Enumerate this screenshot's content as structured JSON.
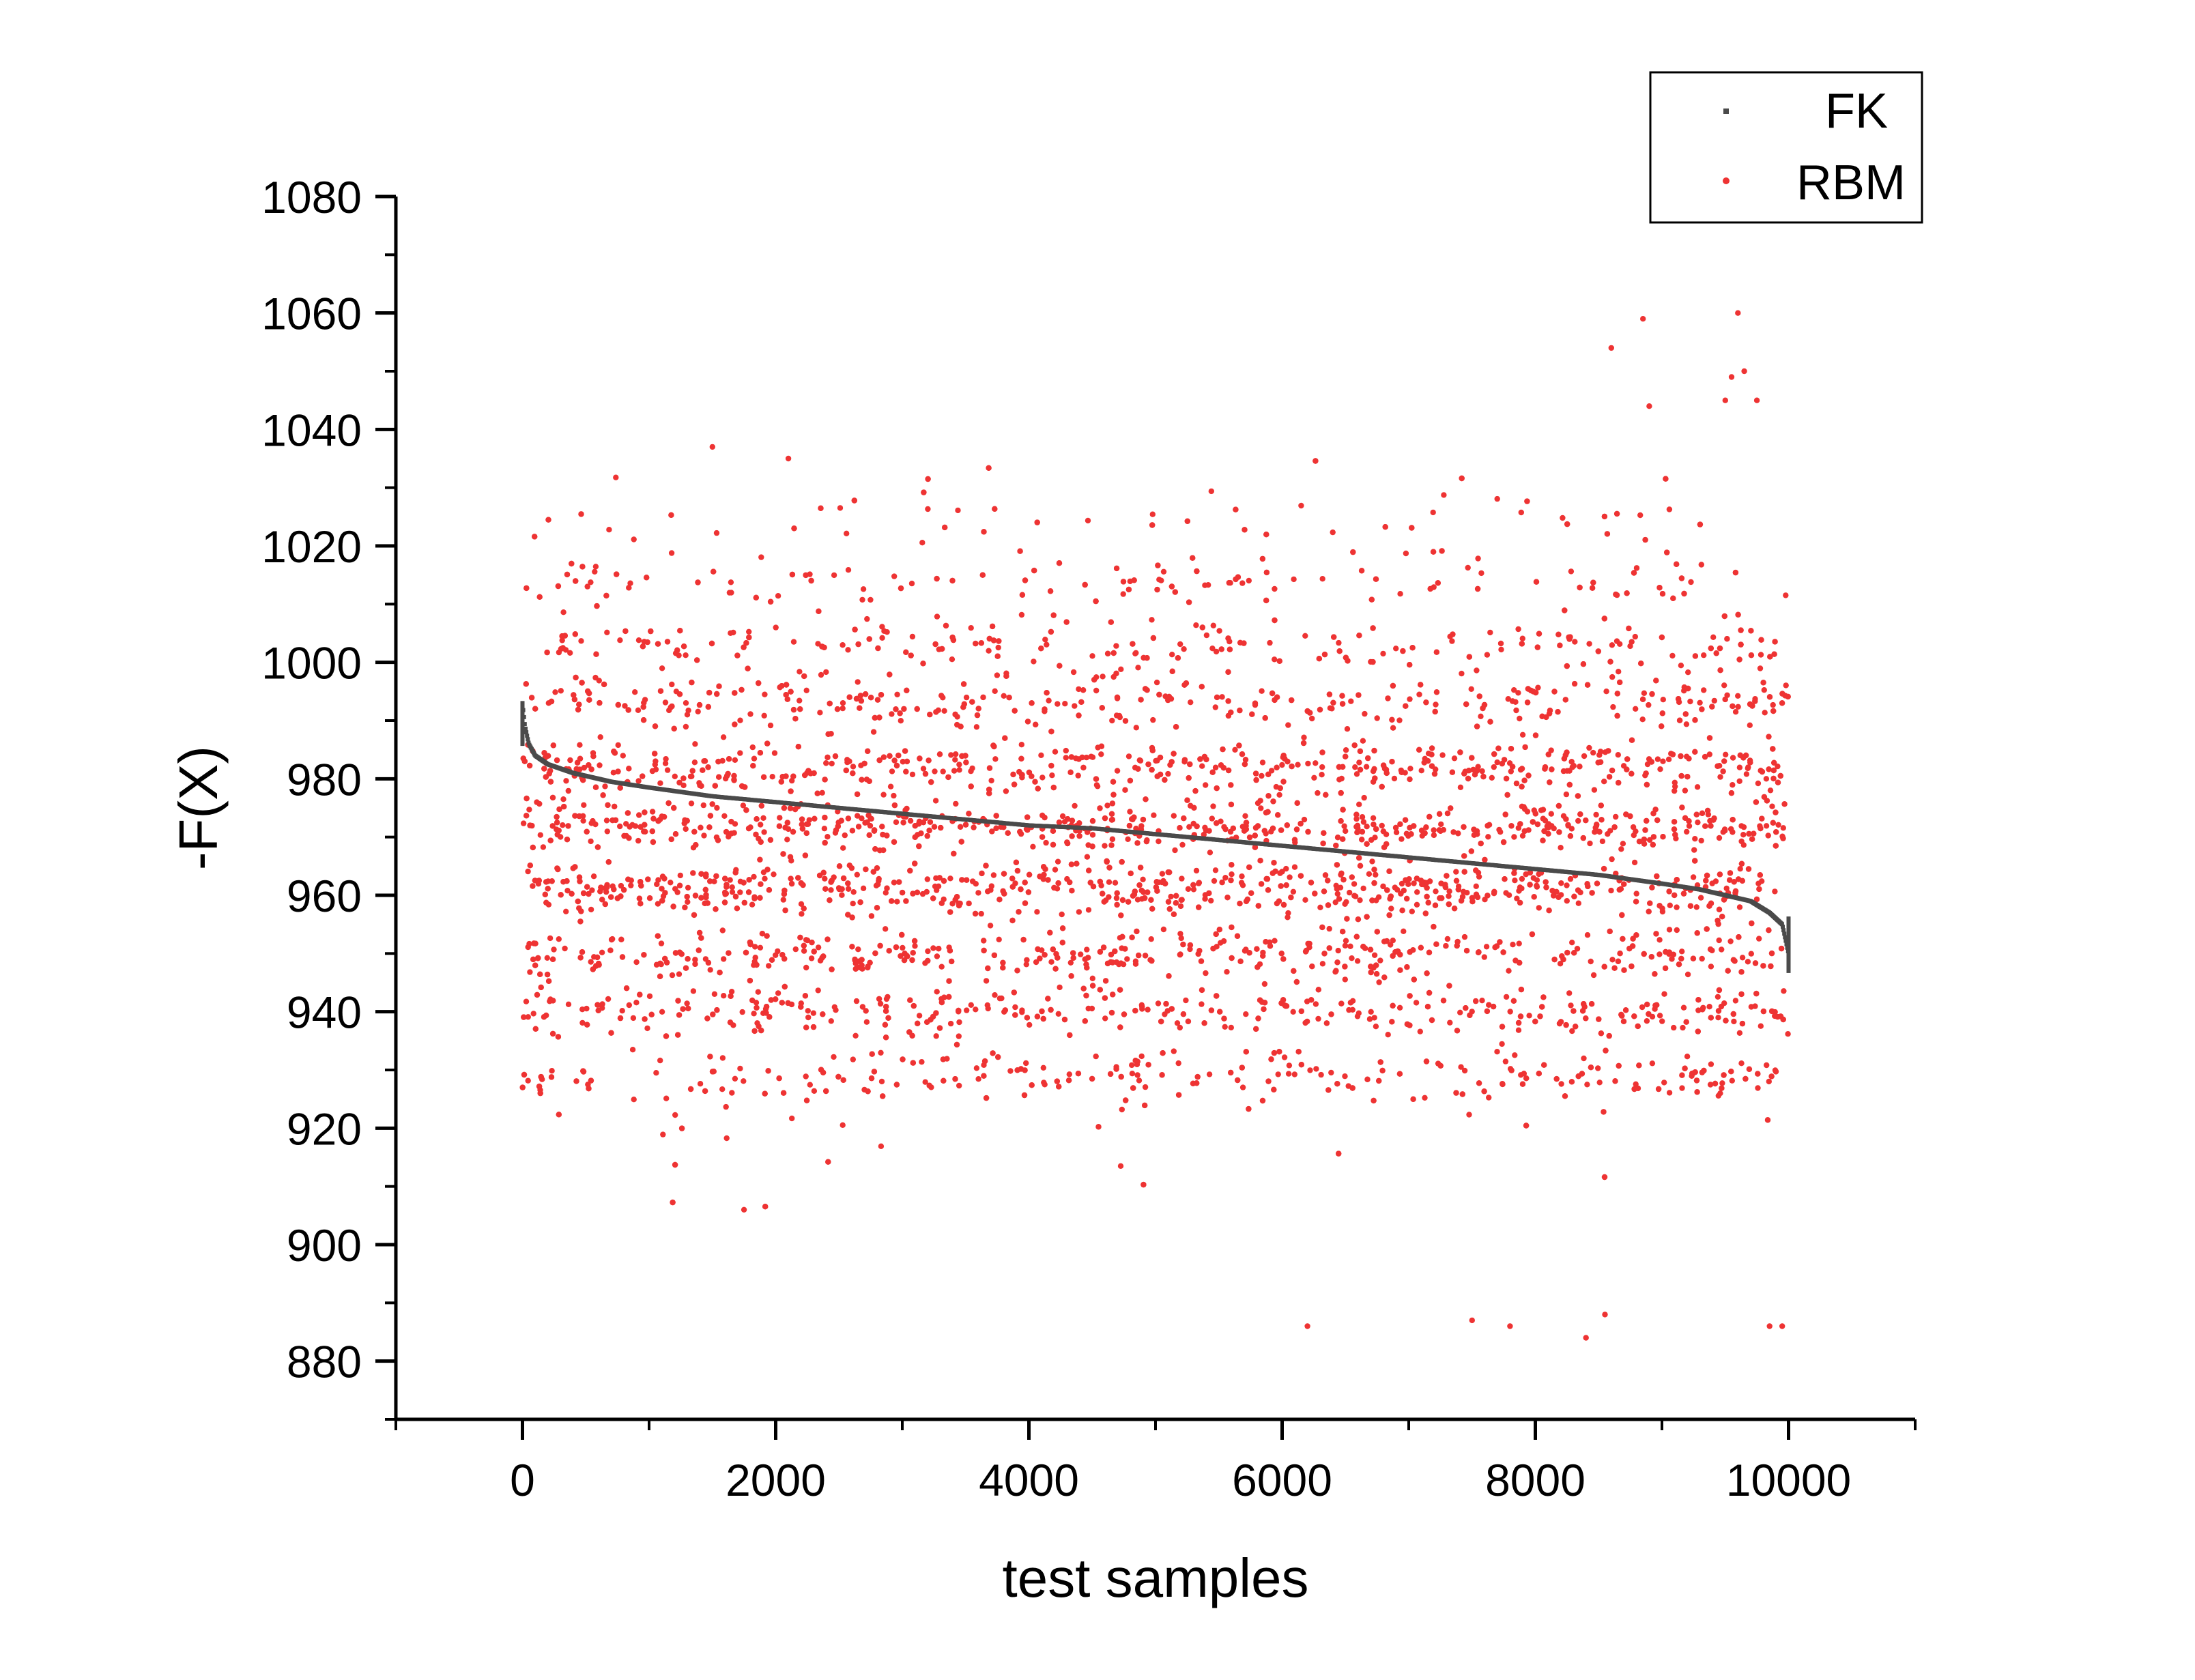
{
  "chart_data": {
    "type": "scatter",
    "xlabel": "test samples",
    "ylabel": "-F(X)",
    "xlim": [
      -1000,
      11000
    ],
    "ylim": [
      870,
      1080
    ],
    "xticks": [
      0,
      2000,
      4000,
      6000,
      8000,
      10000
    ],
    "yticks": [
      880,
      900,
      920,
      940,
      960,
      980,
      1000,
      1020,
      1040,
      1060,
      1080
    ],
    "grid": false,
    "legend_position": "top-right",
    "series": [
      {
        "name": "FK",
        "color": "#4a4a4a",
        "marker": "square",
        "description_points": "sorted monotonically decreasing curve",
        "x": [
          0,
          20,
          50,
          100,
          200,
          400,
          700,
          1000,
          1500,
          2000,
          2500,
          3000,
          3500,
          4000,
          4500,
          5000,
          5500,
          6000,
          6500,
          7000,
          7500,
          8000,
          8500,
          9000,
          9300,
          9500,
          9700,
          9850,
          9950,
          10000
        ],
        "y": [
          993,
          989,
          986,
          984,
          982.5,
          981,
          979.5,
          978.5,
          977,
          976,
          975,
          974,
          973,
          972,
          971.5,
          970.5,
          969.5,
          968.5,
          967.5,
          966.5,
          965.5,
          964.5,
          963.5,
          962,
          961,
          960,
          959,
          957,
          955,
          950
        ]
      },
      {
        "name": "RBM",
        "color": "#ee3333",
        "marker": "circle",
        "description_points": "scattered points clustered in horizontal bands",
        "band_centers": [
          929,
          940,
          950,
          961,
          972,
          982,
          993,
          1003,
          1014,
          1025
        ],
        "band_weights": [
          0.06,
          0.1,
          0.14,
          0.18,
          0.18,
          0.14,
          0.1,
          0.06,
          0.03,
          0.01
        ],
        "x_range": [
          0,
          10000
        ],
        "outliers_x": [
          1500,
          2100,
          1750,
          6200,
          7500,
          7800,
          8400,
          8550,
          8600,
          8850,
          8900,
          9600,
          9650,
          9750,
          9850,
          9950,
          9500,
          9550
        ],
        "outliers_y": [
          1037,
          1035,
          906,
          886,
          887,
          886,
          884,
          888,
          1054,
          1059,
          1044,
          1060,
          1050,
          1045,
          886,
          886,
          1045,
          1049
        ]
      }
    ]
  }
}
